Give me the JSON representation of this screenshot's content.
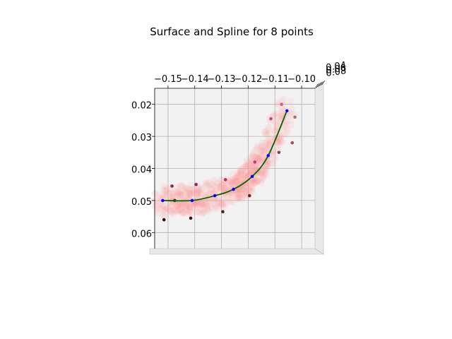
{
  "chart_data": {
    "type": "scatter",
    "title": "Surface and Spline for 8 points",
    "xlabel": "",
    "ylabel": "",
    "xlim": [
      -0.155,
      -0.095
    ],
    "ylim": [
      0.015,
      0.065
    ],
    "x_ticks": [
      "−0.15",
      "−0.14",
      "−0.13",
      "−0.12",
      "−0.11",
      "−0.10"
    ],
    "y_ticks": [
      "0.02",
      "0.03",
      "0.04",
      "0.05",
      "0.06"
    ],
    "z_ticks": [
      "0.04",
      "0.06",
      "0.08"
    ],
    "grid": true,
    "colors": {
      "pane": "#f2f2f2",
      "grid": "#b0b0b0",
      "surface": "#ff9b9b",
      "spline": "#006400",
      "spline_dots": "#0000ff"
    },
    "series": [
      {
        "values": [
          {
            "x": -0.152,
            "y": 0.05
          },
          {
            "x": -0.141,
            "y": 0.05
          },
          {
            "x": -0.1325,
            "y": 0.0485
          },
          {
            "x": -0.1235,
            "y": 0.0455
          },
          {
            "x": -0.118,
            "y": 0.042
          },
          {
            "x": -0.113,
            "y": 0.036
          },
          {
            "x": -0.1055,
            "y": 0.022
          }
        ]
      },
      {
        "values": [
          {
            "x": -0.1485,
            "y": 0.0455,
            "c": "#9e1a5a"
          },
          {
            "x": -0.1395,
            "y": 0.045,
            "c": "#9e1a5a"
          },
          {
            "x": -0.1285,
            "y": 0.0435,
            "c": "#b03070"
          },
          {
            "x": -0.1175,
            "y": 0.038,
            "c": "#c04080"
          },
          {
            "x": -0.1115,
            "y": 0.0245,
            "c": "#c05080"
          },
          {
            "x": -0.1075,
            "y": 0.02,
            "c": "#d06090"
          },
          {
            "x": -0.1025,
            "y": 0.024,
            "c": "#b07070"
          },
          {
            "x": -0.1035,
            "y": 0.032,
            "c": "#a05050"
          },
          {
            "x": -0.1085,
            "y": 0.035,
            "c": "#904040"
          },
          {
            "x": -0.1195,
            "y": 0.0485,
            "c": "#802020"
          },
          {
            "x": -0.1295,
            "y": 0.0535,
            "c": "#502020"
          },
          {
            "x": -0.1415,
            "y": 0.0555,
            "c": "#401010"
          },
          {
            "x": -0.1515,
            "y": 0.056,
            "c": "#300000"
          },
          {
            "x": -0.1475,
            "y": 0.05,
            "c": "#602040"
          }
        ]
      },
      {
        "values": [
          {
            "x": -0.152,
            "y": 0.05
          },
          {
            "x": -0.141,
            "y": 0.05
          },
          {
            "x": -0.1325,
            "y": 0.0485
          },
          {
            "x": -0.1255,
            "y": 0.0465
          },
          {
            "x": -0.1185,
            "y": 0.0425
          },
          {
            "x": -0.1125,
            "y": 0.036
          },
          {
            "x": -0.1055,
            "y": 0.022
          }
        ]
      }
    ]
  }
}
